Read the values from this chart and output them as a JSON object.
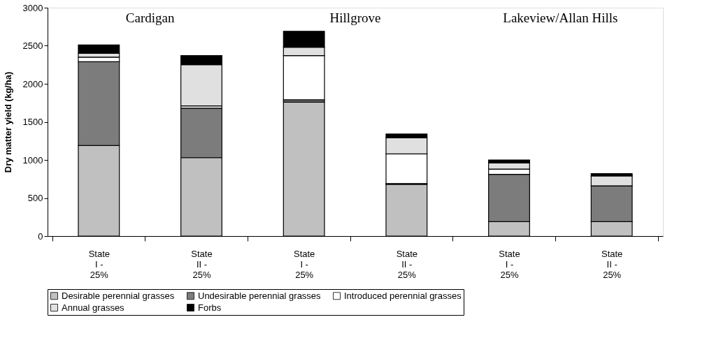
{
  "chart_data": {
    "type": "bar",
    "stacked": true,
    "ylabel": "Dry matter yield (kg/ha)",
    "categories": [
      "State I - 25%",
      "State II - 25%",
      "State I - 25%",
      "State II - 25%",
      "State I - 25%",
      "State II - 25%"
    ],
    "series": [
      {
        "name": "Desirable perennial grasses",
        "color": "#c0c0c0",
        "values": [
          1190,
          1030,
          1760,
          680,
          190,
          190
        ]
      },
      {
        "name": "Undesirable perennial grasses",
        "color": "#7c7c7c",
        "values": [
          1100,
          650,
          30,
          10,
          620,
          470
        ]
      },
      {
        "name": "Introduced perennial grasses",
        "color": "#ffffff",
        "values": [
          60,
          30,
          580,
          390,
          70,
          0
        ]
      },
      {
        "name": "Annual grasses",
        "color": "#e0e0e0",
        "values": [
          50,
          540,
          110,
          210,
          80,
          130
        ]
      },
      {
        "name": "Forbs",
        "color": "#000000",
        "values": [
          110,
          120,
          210,
          50,
          40,
          30
        ]
      }
    ],
    "ylim": [
      0,
      3000
    ],
    "yticks": [
      0,
      500,
      1000,
      1500,
      2000,
      2500,
      3000
    ],
    "annotations": [
      "Cardigan",
      "Hillgrove",
      "Lakeview/Allan Hills"
    ],
    "grid": false,
    "legend": "bottom"
  }
}
